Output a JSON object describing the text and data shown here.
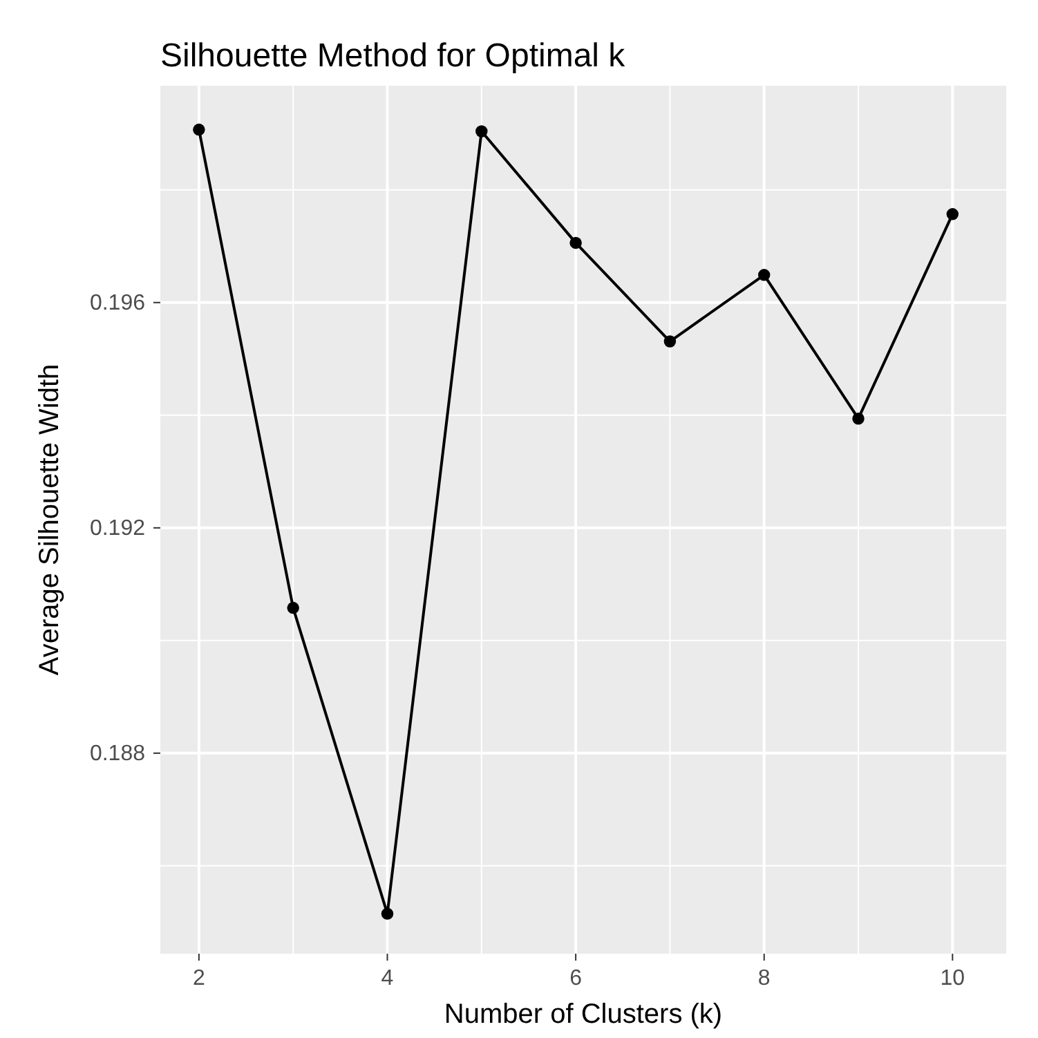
{
  "chart_data": {
    "type": "line",
    "title": "Silhouette Method for Optimal k",
    "xlabel": "Number of Clusters (k)",
    "ylabel": "Average Silhouette Width",
    "x": [
      2,
      3,
      4,
      5,
      6,
      7,
      8,
      9,
      10
    ],
    "series": [
      {
        "color": "#000000",
        "values": [
          0.19907,
          0.19058,
          0.18515,
          0.19904,
          0.19706,
          0.19531,
          0.19649,
          0.19394,
          0.19757
        ]
      }
    ],
    "xlim": [
      1.59,
      10.57
    ],
    "ylim": [
      0.18444,
      0.19985
    ],
    "xticks": [
      2,
      {
        "value": 3,
        "label": null
      },
      4,
      {
        "value": 5,
        "label": null
      },
      6,
      {
        "value": 7,
        "label": null
      },
      8,
      {
        "value": 9,
        "label": null
      },
      10
    ],
    "yticks": [
      {
        "value": 0.186,
        "label": null
      },
      0.188,
      {
        "value": 0.19,
        "label": null
      },
      0.192,
      {
        "value": 0.194,
        "label": null
      },
      0.196,
      {
        "value": 0.198,
        "label": null
      }
    ],
    "grid": true,
    "marker": "circle",
    "line_style": "solid"
  }
}
